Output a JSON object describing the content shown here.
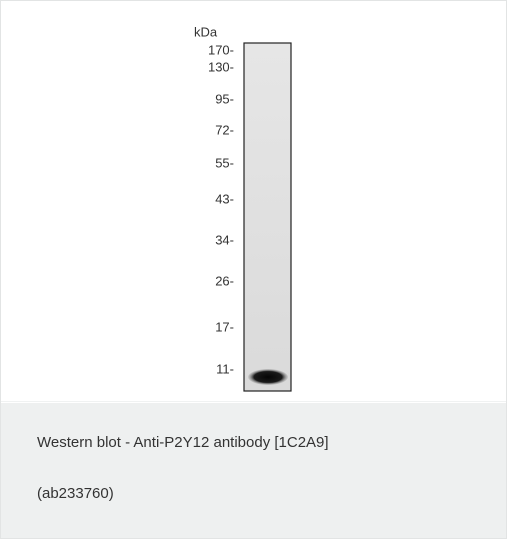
{
  "figure": {
    "unit": "kDa",
    "markers": [
      "170-",
      "130-",
      "95-",
      "72-",
      "55-",
      "43-",
      "34-",
      "26-",
      "17-",
      "11-"
    ]
  },
  "caption": {
    "lines": [
      "Western blot - Anti-P2Y12 antibody [1C2A9]",
      "(ab233760)"
    ]
  }
}
